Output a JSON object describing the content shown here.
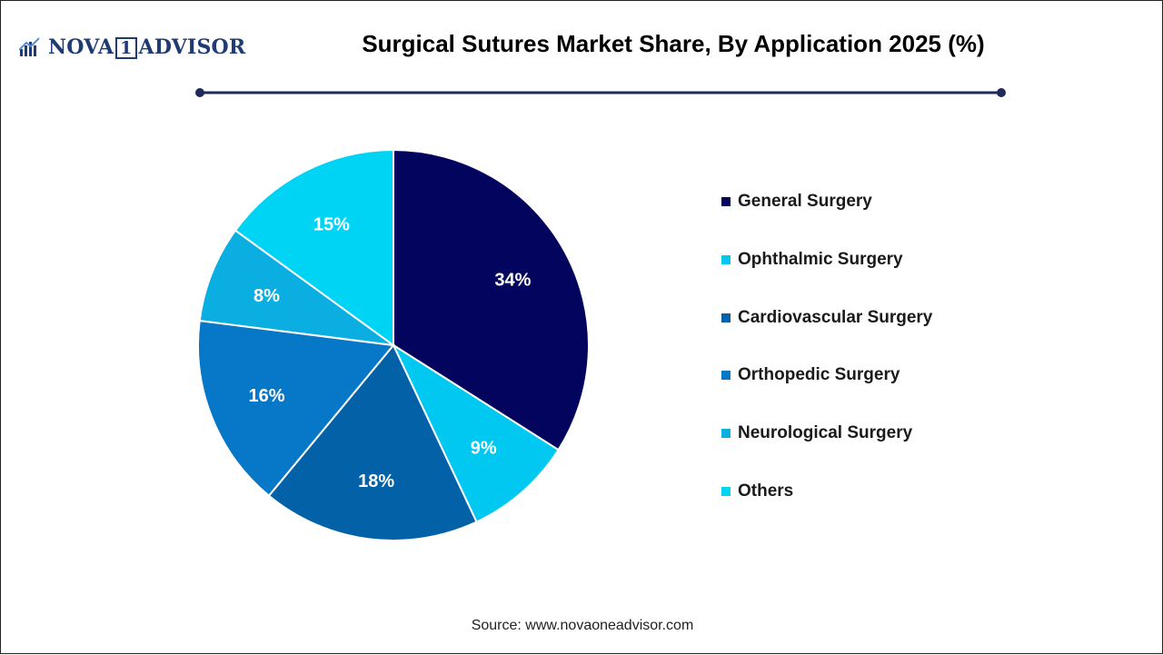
{
  "header": {
    "logo_text_left": "NOVA",
    "logo_text_box": "1",
    "logo_text_right": "ADVISOR",
    "logo_icon": "bar-chart-icon",
    "title": "Surgical Sutures Market Share, By Application 2025 (%)",
    "divider_color": "#1f2a5a"
  },
  "chart_data": {
    "type": "pie",
    "title": "Surgical Sutures Market Share, By Application 2025 (%)",
    "legend_position": "right",
    "start_angle_deg": 0,
    "direction": "clockwise",
    "slices": [
      {
        "label": "General Surgery",
        "value": 34,
        "display": "34%",
        "color": "#03045e"
      },
      {
        "label": "Ophthalmic Surgery",
        "value": 9,
        "display": "9%",
        "color": "#00c8f0"
      },
      {
        "label": "Cardiovascular Surgery",
        "value": 18,
        "display": "18%",
        "color": "#0361a8"
      },
      {
        "label": "Orthopedic Surgery",
        "value": 16,
        "display": "16%",
        "color": "#0777c7"
      },
      {
        "label": "Neurological Surgery",
        "value": 8,
        "display": "8%",
        "color": "#0aaee0"
      },
      {
        "label": "Others",
        "value": 15,
        "display": "15%",
        "color": "#00d4f5"
      }
    ]
  },
  "footer": {
    "source": "Source: www.novaoneadvisor.com"
  }
}
